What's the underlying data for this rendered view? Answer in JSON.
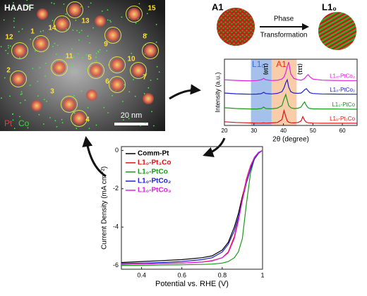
{
  "haadf": {
    "title": "HAADF",
    "particle_labels": [
      "1",
      "2",
      "3",
      "4",
      "5",
      "6",
      "7",
      "8",
      "9",
      "10",
      "11",
      "12",
      "13",
      "14",
      "15"
    ],
    "element_legend": [
      {
        "name": "Pt",
        "color": "#ff3030"
      },
      {
        "name": "Co",
        "color": "#30e030"
      }
    ],
    "scale_bar": "20 nm"
  },
  "schematic": {
    "from": "A1",
    "to": "L1₀",
    "arrow_top": "Phase",
    "arrow_bottom": "Transformation"
  },
  "chart_data": [
    {
      "type": "line",
      "ylabel": "Intensity (a.u.)",
      "xlabel": "2θ (degree)",
      "xlim": [
        20,
        65
      ],
      "xticks": [
        20,
        30,
        40,
        50,
        60
      ],
      "ylim": [
        0,
        4.5
      ],
      "legend": "inline-right",
      "bands": [
        {
          "label": "L1₀",
          "from": 29,
          "to": 36,
          "color": "#8fb0e6",
          "text_color": "#3a6fd0"
        },
        {
          "label": "A1",
          "from": 36,
          "to": 44.5,
          "color": "#f7bf95",
          "text_color": "#e03010"
        }
      ],
      "peak_labels": [
        {
          "text": "(110)",
          "x": 34
        },
        {
          "text": "(111)",
          "x": 45.6
        }
      ],
      "x": [
        20,
        24,
        27,
        29,
        31,
        32.5,
        33.3,
        34,
        36,
        38,
        39.5,
        40.2,
        40.8,
        41.3,
        41.8,
        42.5,
        43.5,
        45,
        46,
        46.6,
        47.2,
        47.8,
        48.4,
        49,
        50,
        53,
        57,
        61,
        65
      ],
      "series": [
        {
          "name": "L1₀-PtCo₃",
          "color": "#e020e0",
          "values": [
            3.1,
            3.06,
            3.04,
            3.03,
            3.05,
            3.1,
            3.2,
            3.1,
            3.05,
            3.07,
            3.15,
            3.3,
            3.6,
            4.0,
            4.3,
            3.5,
            3.2,
            3.1,
            3.08,
            3.12,
            3.2,
            3.35,
            3.45,
            3.3,
            3.15,
            3.08,
            3.06,
            3.05,
            3.05
          ]
        },
        {
          "name": "L1₀-PtCo₂",
          "color": "#2020d0",
          "values": [
            2.2,
            2.15,
            2.13,
            2.12,
            2.13,
            2.16,
            2.25,
            2.17,
            2.14,
            2.18,
            2.3,
            2.55,
            2.9,
            3.1,
            2.6,
            2.3,
            2.2,
            2.18,
            2.2,
            2.3,
            2.42,
            2.5,
            2.35,
            2.22,
            2.17,
            2.14,
            2.13,
            2.12,
            2.12
          ]
        },
        {
          "name": "L1₀-PtCo",
          "color": "#1a9a1a",
          "values": [
            1.2,
            1.15,
            1.13,
            1.12,
            1.12,
            1.15,
            1.25,
            1.15,
            1.13,
            1.18,
            1.35,
            1.8,
            2.1,
            1.7,
            1.35,
            1.2,
            1.15,
            1.17,
            1.25,
            1.45,
            1.6,
            1.35,
            1.2,
            1.15,
            1.13,
            1.12,
            1.12,
            1.11,
            1.1
          ]
        },
        {
          "name": "L1₀-Pt₃Co",
          "color": "#e01010",
          "values": [
            0.25,
            0.2,
            0.18,
            0.17,
            0.16,
            0.16,
            0.17,
            0.16,
            0.17,
            0.2,
            0.4,
            1.0,
            0.6,
            0.3,
            0.22,
            0.18,
            0.17,
            0.2,
            0.3,
            0.6,
            0.35,
            0.22,
            0.18,
            0.17,
            0.16,
            0.15,
            0.15,
            0.15,
            0.15
          ]
        }
      ]
    },
    {
      "type": "line",
      "ylabel": "Current Density (mA cm⁻²)",
      "xlabel": "Potential vs. RHE (V)",
      "xlim": [
        0.3,
        1.0
      ],
      "xticks": [
        0.4,
        0.6,
        0.8,
        1.0
      ],
      "ylim": [
        -6.2,
        0.2
      ],
      "yticks": [
        0,
        -2,
        -4,
        -6
      ],
      "legend": "upper left",
      "x": [
        0.3,
        0.4,
        0.5,
        0.6,
        0.7,
        0.75,
        0.8,
        0.83,
        0.86,
        0.88,
        0.9,
        0.92,
        0.94,
        0.96,
        0.98,
        1.0
      ],
      "series": [
        {
          "name": "Comm-Pt",
          "color": "#000000",
          "values": [
            -5.85,
            -5.8,
            -5.75,
            -5.7,
            -5.6,
            -5.5,
            -5.2,
            -4.8,
            -4.0,
            -3.3,
            -2.4,
            -1.6,
            -0.9,
            -0.4,
            -0.1,
            0.0
          ]
        },
        {
          "name": "L1₀-Pt₃Co",
          "color": "#e01010",
          "values": [
            -5.95,
            -5.93,
            -5.9,
            -5.88,
            -5.82,
            -5.75,
            -5.6,
            -5.3,
            -4.5,
            -3.6,
            -2.5,
            -1.5,
            -0.8,
            -0.35,
            -0.1,
            0.0
          ]
        },
        {
          "name": "L1₀-PtCo",
          "color": "#1a9a1a",
          "values": [
            -6.0,
            -6.0,
            -5.98,
            -5.97,
            -5.95,
            -5.93,
            -5.88,
            -5.8,
            -5.6,
            -5.3,
            -4.6,
            -2.8,
            -1.2,
            -0.4,
            -0.1,
            0.0
          ]
        },
        {
          "name": "L1₀-PtCo₂",
          "color": "#2020d0",
          "values": [
            -5.9,
            -5.88,
            -5.85,
            -5.8,
            -5.7,
            -5.6,
            -5.3,
            -4.9,
            -4.2,
            -3.5,
            -2.6,
            -1.7,
            -1.0,
            -0.45,
            -0.15,
            0.0
          ]
        },
        {
          "name": "L1₀-PtCo₃",
          "color": "#e020e0",
          "values": [
            -5.95,
            -5.93,
            -5.9,
            -5.88,
            -5.83,
            -5.77,
            -5.6,
            -5.35,
            -4.6,
            -3.7,
            -2.6,
            -1.6,
            -0.85,
            -0.35,
            -0.1,
            0.0
          ]
        }
      ]
    }
  ]
}
